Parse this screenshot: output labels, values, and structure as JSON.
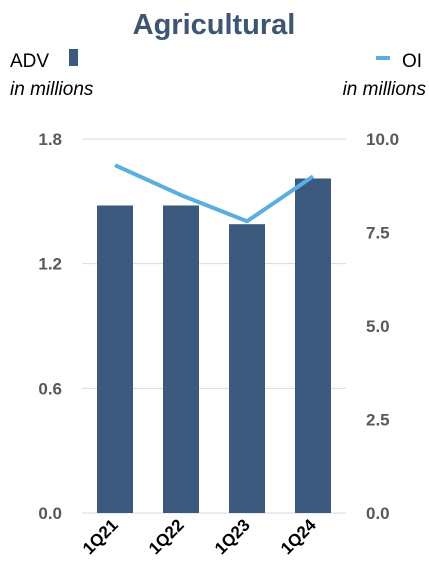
{
  "chart_data": {
    "type": "bar",
    "title": "Agricultural",
    "categories": [
      "1Q21",
      "1Q22",
      "1Q23",
      "1Q24"
    ],
    "series": [
      {
        "name": "ADV",
        "kind": "bar",
        "axis": "left",
        "values": [
          1.48,
          1.48,
          1.39,
          1.61
        ],
        "color": "#3b5a7e"
      },
      {
        "name": "OI",
        "kind": "line",
        "axis": "right",
        "values": [
          9.3,
          8.5,
          7.8,
          9.0
        ],
        "color": "#5aaee0"
      }
    ],
    "left_axis": {
      "unit_label": "in millions",
      "ylim": [
        0,
        1.8
      ],
      "ticks": [
        "0.0",
        "0.6",
        "1.2",
        "1.8"
      ]
    },
    "right_axis": {
      "unit_label": "in millions",
      "ylim": [
        0,
        10
      ],
      "ticks": [
        "0.0",
        "2.5",
        "5.0",
        "7.5",
        "10.0"
      ]
    },
    "grid": true,
    "title_color": "#3e5673"
  }
}
